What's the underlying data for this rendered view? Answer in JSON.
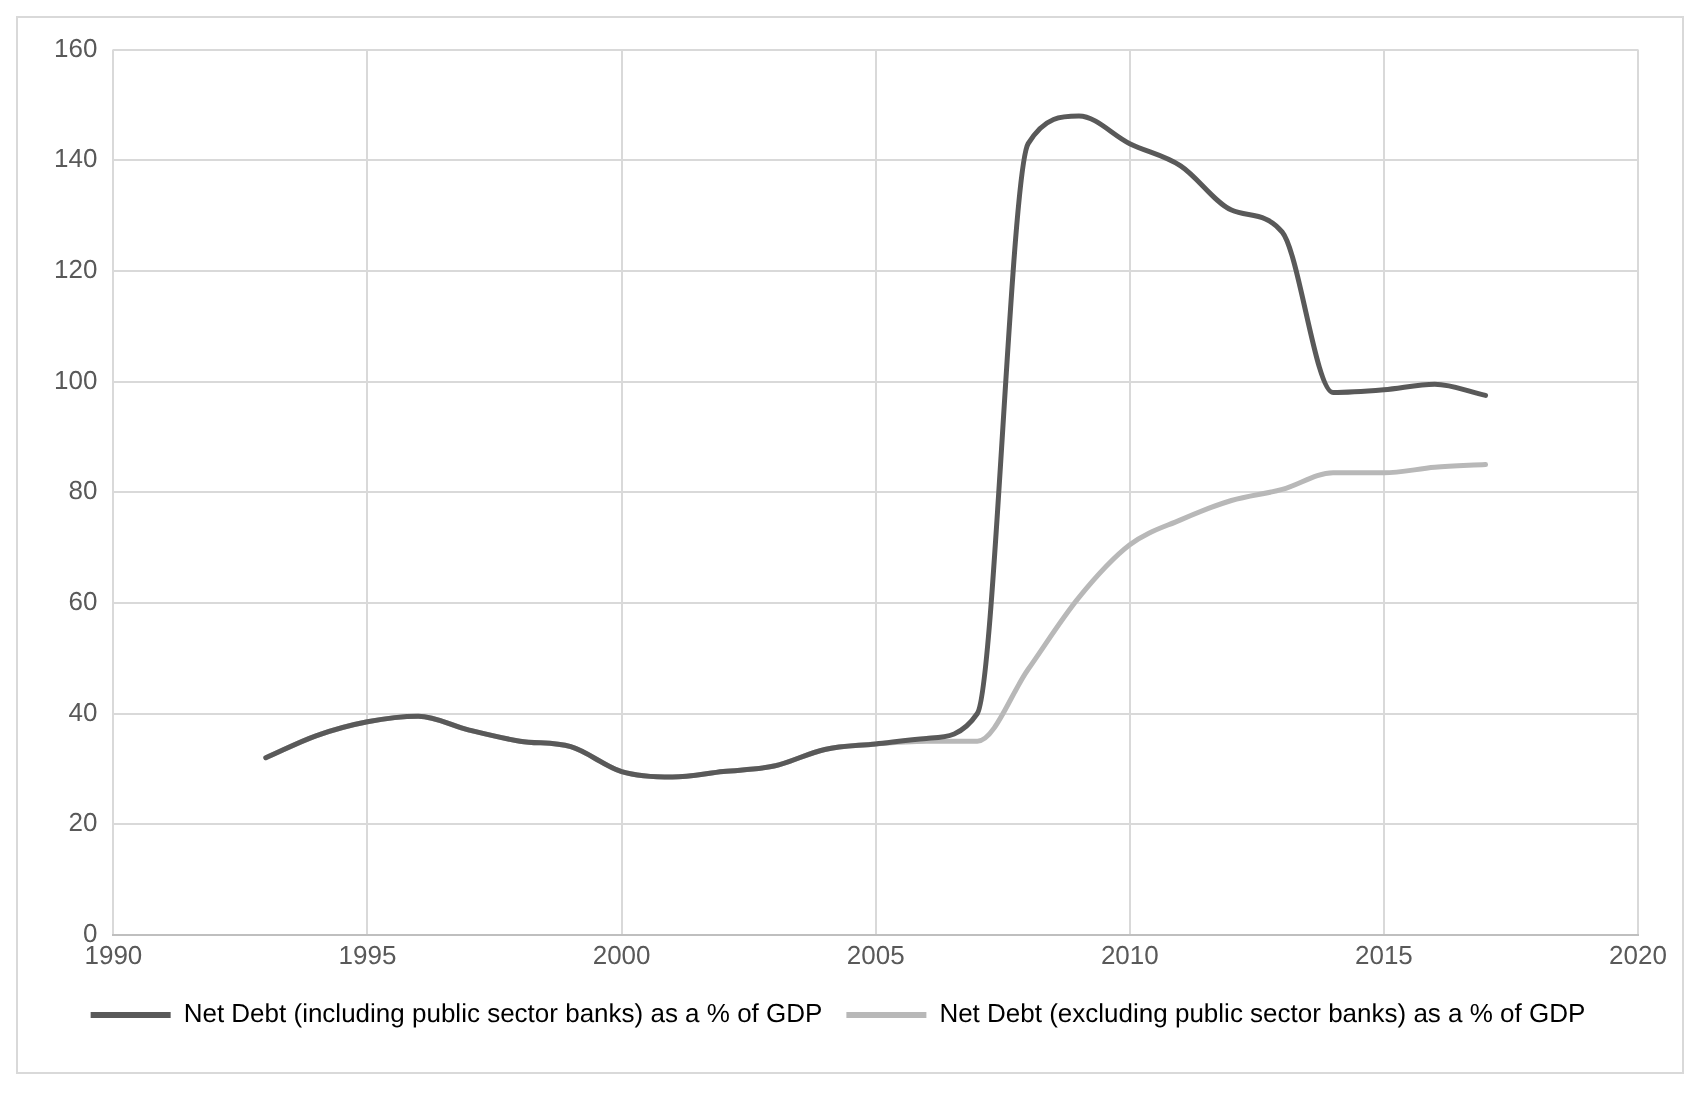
{
  "chart_data": {
    "type": "line",
    "x": [
      1993,
      1994,
      1995,
      1996,
      1997,
      1998,
      1999,
      2000,
      2001,
      2002,
      2003,
      2004,
      2005,
      2006,
      2007,
      2008,
      2009,
      2010,
      2011,
      2012,
      2013,
      2014,
      2015,
      2016,
      2017
    ],
    "series": [
      {
        "name": "Net Debt (including public sector banks) as a % of GDP",
        "color": "#595959",
        "values": [
          32,
          36,
          38.5,
          39.5,
          37,
          35,
          34,
          29.5,
          28.5,
          29.5,
          30.5,
          33.5,
          34.5,
          35.5,
          40,
          143,
          148,
          143,
          139,
          131,
          127,
          98,
          98.5,
          99.5,
          97.5
        ]
      },
      {
        "name": "Net Debt (excluding public sector banks) as a % of GDP",
        "color": "#b8b8b8",
        "values": [
          32,
          36,
          38.5,
          39.5,
          37,
          35,
          34,
          29.5,
          28.5,
          29.5,
          30.5,
          33.5,
          34.5,
          35,
          35,
          48,
          61,
          70.5,
          75,
          78.5,
          80.5,
          83.5,
          83.5,
          84.5,
          85
        ]
      }
    ],
    "xlim": [
      1990,
      2020
    ],
    "xticks": [
      1990,
      1995,
      2000,
      2005,
      2010,
      2015,
      2020
    ],
    "ylim": [
      0,
      160
    ],
    "yticks": [
      0,
      20,
      40,
      60,
      80,
      100,
      120,
      140,
      160
    ],
    "grid": true,
    "legend": "bottom",
    "marker": "none",
    "line_style": "solid"
  }
}
